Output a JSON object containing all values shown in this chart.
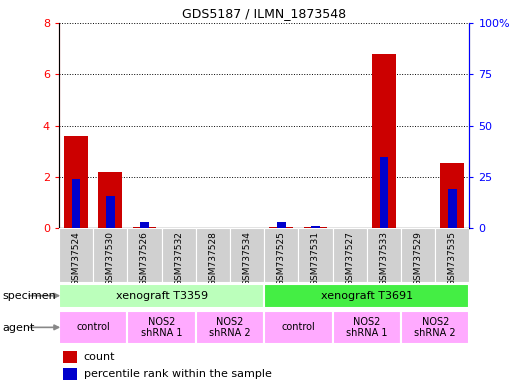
{
  "title": "GDS5187 / ILMN_1873548",
  "samples": [
    "GSM737524",
    "GSM737530",
    "GSM737526",
    "GSM737532",
    "GSM737528",
    "GSM737534",
    "GSM737525",
    "GSM737531",
    "GSM737527",
    "GSM737533",
    "GSM737529",
    "GSM737535"
  ],
  "counts": [
    3.6,
    2.2,
    0.05,
    0.0,
    0.0,
    0.0,
    0.05,
    0.05,
    0.0,
    6.8,
    0.0,
    2.55
  ],
  "percentiles": [
    24,
    16,
    3,
    0,
    0,
    0,
    3,
    1,
    0,
    35,
    0,
    19
  ],
  "ylim_left": [
    0,
    8
  ],
  "ylim_right": [
    0,
    100
  ],
  "yticks_left": [
    0,
    2,
    4,
    6,
    8
  ],
  "ytick_labels_right": [
    "0",
    "25",
    "50",
    "75",
    "100%"
  ],
  "yticks_right": [
    0,
    25,
    50,
    75,
    100
  ],
  "bar_color": "#cc0000",
  "percentile_color": "#0000cc",
  "bg_color": "#ffffff",
  "plot_bg": "#ffffff",
  "specimen_groups": [
    {
      "label": "xenograft T3359",
      "start": 0,
      "end": 6,
      "color": "#bbffbb"
    },
    {
      "label": "xenograft T3691",
      "start": 6,
      "end": 12,
      "color": "#44ee44"
    }
  ],
  "agent_groups": [
    {
      "label": "control",
      "start": 0,
      "end": 2,
      "color": "#ffaaff"
    },
    {
      "label": "NOS2\nshRNA 1",
      "start": 2,
      "end": 4,
      "color": "#ffaaff"
    },
    {
      "label": "NOS2\nshRNA 2",
      "start": 4,
      "end": 6,
      "color": "#ffaaff"
    },
    {
      "label": "control",
      "start": 6,
      "end": 8,
      "color": "#ffaaff"
    },
    {
      "label": "NOS2\nshRNA 1",
      "start": 8,
      "end": 10,
      "color": "#ffaaff"
    },
    {
      "label": "NOS2\nshRNA 2",
      "start": 10,
      "end": 12,
      "color": "#ffaaff"
    }
  ],
  "legend_count_label": "count",
  "legend_pct_label": "percentile rank within the sample",
  "xlabel_specimen": "specimen",
  "xlabel_agent": "agent",
  "bar_width": 0.7,
  "pct_bar_width": 0.25
}
